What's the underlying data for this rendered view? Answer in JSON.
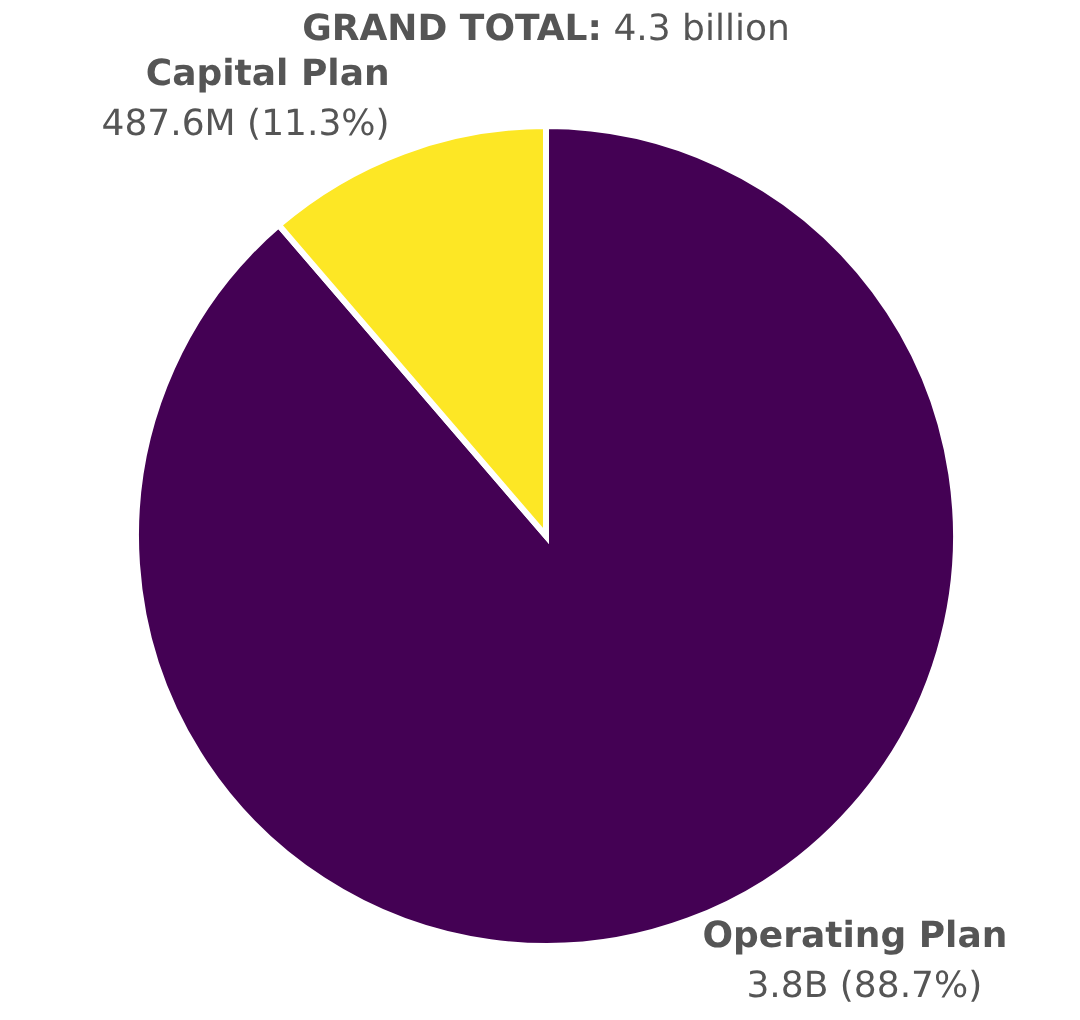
{
  "chart_data": {
    "type": "pie",
    "title": "GRAND TOTAL: 4.3 billion",
    "categories": [
      "Operating Plan",
      "Capital Plan"
    ],
    "values": [
      88.7,
      11.3
    ],
    "colors": [
      "#440154",
      "#fde725"
    ],
    "value_labels": [
      "3.8B (88.7%)",
      "487.6M (11.3%)"
    ]
  }
}
